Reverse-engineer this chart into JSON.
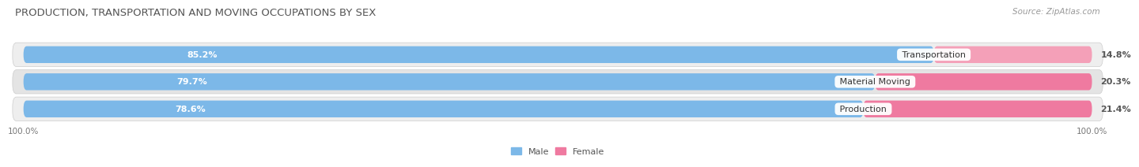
{
  "title": "PRODUCTION, TRANSPORTATION AND MOVING OCCUPATIONS BY SEX",
  "source": "Source: ZipAtlas.com",
  "categories": [
    "Transportation",
    "Material Moving",
    "Production"
  ],
  "male_values": [
    85.2,
    79.7,
    78.6
  ],
  "female_values": [
    14.8,
    20.3,
    21.4
  ],
  "male_color": "#7cb8e8",
  "female_color_top": "#f4a0b8",
  "female_color_mid": "#ef7aa0",
  "female_color_bot": "#ef7aa0",
  "row_bg_even": "#eeeeee",
  "row_bg_odd": "#e4e4e4",
  "title_fontsize": 9.5,
  "label_fontsize": 8,
  "tick_fontsize": 7.5,
  "legend_fontsize": 8,
  "source_fontsize": 7.5,
  "male_label_color": "white",
  "female_label_color": "#555555",
  "cat_label_color": "#333333"
}
